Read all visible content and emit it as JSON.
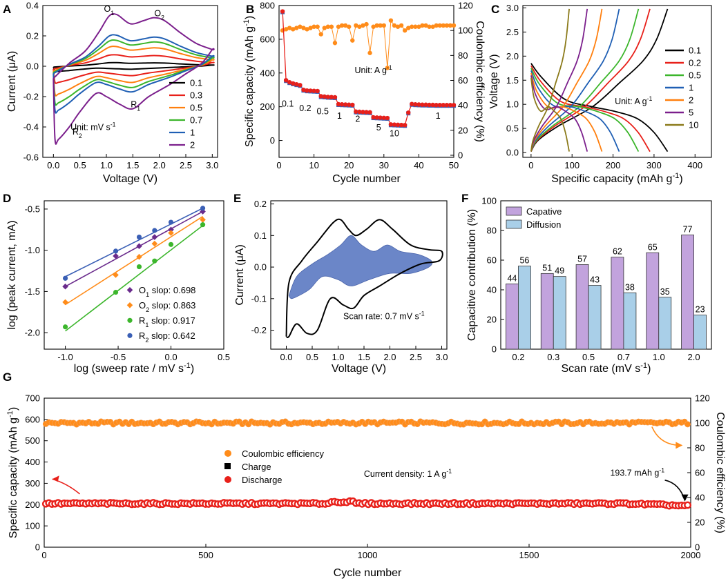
{
  "colors": {
    "cv": [
      "#000000",
      "#e8201a",
      "#ff7f0e",
      "#3cb62c",
      "#1f5fb4",
      "#7b1f8c"
    ],
    "orange": "#ff8c1a",
    "red": "#e8201a",
    "blue": "#3a5fb5",
    "purple": "#6a2b8c",
    "green": "#3cb62c",
    "capative": "#c2a3dd",
    "diffusion": "#a9cfe8",
    "fill_blue": "#6b86c8"
  },
  "chart_data": [
    {
      "panel": "A",
      "type": "line",
      "xlabel": "Voltage (V)",
      "ylabel": "Current (μA)",
      "xlim": [
        -0.2,
        3.1
      ],
      "ylim": [
        -0.6,
        0.4
      ],
      "xticks": [
        "0.0",
        "0.5",
        "1.0",
        "1.5",
        "2.0",
        "2.5",
        "3.0"
      ],
      "yticks": [
        "-0.6",
        "-0.4",
        "-0.2",
        "0.0",
        "0.2",
        "0.4"
      ],
      "legend": [
        "0.1",
        "0.3",
        "0.5",
        "0.7",
        "1",
        "2"
      ],
      "legend_position": "bottom-right",
      "unit_label": "Unit: mV s",
      "unit_sup": "-1",
      "peak_labels": [
        {
          "main": "O",
          "sub": "1",
          "x": 1.05,
          "y": 0.36
        },
        {
          "main": "O",
          "sub": "2",
          "x": 2.0,
          "y": 0.33
        },
        {
          "main": "R",
          "sub": "1",
          "x": 1.55,
          "y": -0.27
        },
        {
          "main": "R",
          "sub": "2",
          "x": 0.45,
          "y": -0.45
        }
      ],
      "scales": [
        0.07,
        0.22,
        0.38,
        0.5,
        0.6,
        1.0
      ],
      "upper_curve": [
        [
          0.0,
          -0.08
        ],
        [
          0.3,
          0.02
        ],
        [
          0.6,
          0.1
        ],
        [
          0.85,
          0.22
        ],
        [
          1.05,
          0.33
        ],
        [
          1.2,
          0.34
        ],
        [
          1.45,
          0.28
        ],
        [
          1.7,
          0.3
        ],
        [
          1.9,
          0.32
        ],
        [
          2.1,
          0.3
        ],
        [
          2.4,
          0.22
        ],
        [
          2.7,
          0.15
        ],
        [
          3.0,
          0.11
        ]
      ],
      "lower_curve": [
        [
          3.0,
          0.11
        ],
        [
          2.8,
          0.02
        ],
        [
          2.5,
          -0.05
        ],
        [
          2.2,
          -0.12
        ],
        [
          1.8,
          -0.2
        ],
        [
          1.5,
          -0.28
        ],
        [
          1.25,
          -0.25
        ],
        [
          1.0,
          -0.2
        ],
        [
          0.8,
          -0.18
        ],
        [
          0.5,
          -0.3
        ],
        [
          0.3,
          -0.4
        ],
        [
          0.1,
          -0.48
        ],
        [
          0.03,
          -0.48
        ],
        [
          0.0,
          -0.08
        ]
      ]
    },
    {
      "panel": "B",
      "type": "scatter",
      "xlabel": "Cycle number",
      "ylabel": "Specific capacity (mAh g",
      "ylabel_sup": "-1",
      "ylabel_end": ")",
      "y2label": "Coulombic efficiency (%)",
      "xlim": [
        0,
        50
      ],
      "ylim": [
        -100,
        800
      ],
      "y2lim": [
        0,
        120
      ],
      "xticks": [
        "0",
        "10",
        "20",
        "30",
        "40",
        "50"
      ],
      "yticks": [
        "0",
        "200",
        "400",
        "600",
        "800"
      ],
      "y2ticks": [
        "0",
        "20",
        "40",
        "60",
        "80",
        "100",
        "120"
      ],
      "unit_label": "Unit: A g",
      "unit_sup": "-1",
      "rate_labels": [
        {
          "text": "0.1",
          "x": 2.5,
          "y": 200
        },
        {
          "text": "0.2",
          "x": 7.5,
          "y": 175
        },
        {
          "text": "0.5",
          "x": 12.5,
          "y": 155
        },
        {
          "text": "1",
          "x": 17.3,
          "y": 130
        },
        {
          "text": "2",
          "x": 22.5,
          "y": 110
        },
        {
          "text": "5",
          "x": 28.5,
          "y": 60
        },
        {
          "text": "10",
          "x": 33,
          "y": 25
        },
        {
          "text": "1",
          "x": 45.5,
          "y": 130
        }
      ],
      "capacity": [
        765,
        357,
        345,
        338,
        333,
        328,
        300,
        296,
        295,
        294,
        293,
        262,
        260,
        258,
        257,
        256,
        215,
        214,
        213,
        212,
        211,
        171,
        170,
        169,
        168,
        167,
        137,
        136,
        135,
        134,
        133,
        95,
        94,
        93,
        92,
        91,
        165,
        216,
        214,
        213,
        212,
        212,
        211,
        211,
        210,
        210,
        210,
        210,
        210,
        210
      ],
      "efficiency": [
        100,
        101,
        102,
        101,
        102,
        103,
        102,
        101,
        102,
        103,
        103,
        97,
        102,
        103,
        103,
        90,
        103,
        104,
        104,
        103,
        92,
        104,
        103,
        104,
        105,
        82,
        103,
        104,
        104,
        104,
        70,
        108,
        104,
        103,
        104,
        100,
        102,
        103,
        103,
        103,
        104,
        104,
        103,
        103,
        104,
        104,
        104,
        104,
        104,
        104
      ]
    },
    {
      "panel": "C",
      "type": "line",
      "xlabel": "Specific capacity (mAh g",
      "xlabel_sup": "-1",
      "xlabel_end": ")",
      "ylabel": "Voltage (V)",
      "xlim": [
        -20,
        440
      ],
      "ylim": [
        -0.1,
        3.05
      ],
      "xticks": [
        "0",
        "100",
        "200",
        "300",
        "400"
      ],
      "yticks": [
        "0.0",
        "0.5",
        "1.0",
        "1.5",
        "2.0",
        "2.5",
        "3.0"
      ],
      "legend": [
        "0.1",
        "0.2",
        "0.5",
        "1",
        "2",
        "5",
        "10"
      ],
      "legend_position": "top-right",
      "unit_label": "Unit: A g",
      "unit_sup": "-1",
      "capacities": [
        333,
        290,
        262,
        215,
        173,
        137,
        93
      ]
    },
    {
      "panel": "D",
      "type": "scatter",
      "xlabel": "log (sweep rate / mV s",
      "xlabel_sup": "-1",
      "xlabel_end": ")",
      "ylabel": "log (peak current, mA)",
      "xlim": [
        -1.2,
        0.5
      ],
      "ylim": [
        -2.2,
        -0.4
      ],
      "xticks": [
        "-1.0",
        "-0.5",
        "0.0",
        "0.5"
      ],
      "yticks": [
        "-2.0",
        "-1.5",
        "-1.0",
        "-0.5"
      ],
      "x": [
        -1.0,
        -0.523,
        -0.301,
        -0.155,
        0.0,
        0.301
      ],
      "series": [
        {
          "name": "O",
          "sub": "1",
          "slope_text": " slop: 0.698",
          "values": [
            -1.44,
            -1.07,
            -0.95,
            -0.84,
            -0.75,
            -0.53
          ]
        },
        {
          "name": "O",
          "sub": "2",
          "slope_text": " slop: 0.863",
          "values": [
            -1.63,
            -1.3,
            -1.08,
            -0.92,
            -0.79,
            -0.63
          ]
        },
        {
          "name": "R",
          "sub": "1",
          "slope_text": " slop: 0.917",
          "values": [
            -1.93,
            -1.51,
            -1.2,
            -1.13,
            -0.93,
            -0.69
          ]
        },
        {
          "name": "R",
          "sub": "2",
          "slope_text": " slop: 0.642",
          "values": [
            -1.34,
            -1.01,
            -0.84,
            -0.76,
            -0.66,
            -0.49
          ]
        }
      ],
      "fits": [
        [
          -1.44,
          -0.53
        ],
        [
          -1.66,
          -0.59
        ],
        [
          -1.98,
          -0.7
        ],
        [
          -1.32,
          -0.49
        ]
      ]
    },
    {
      "panel": "E",
      "type": "area",
      "xlabel": "Voltage (V)",
      "ylabel": "Current (μA)",
      "xlim": [
        -0.3,
        3.1
      ],
      "ylim": [
        -0.26,
        0.21
      ],
      "xticks": [
        "0.0",
        "0.5",
        "1.0",
        "1.5",
        "2.0",
        "2.5",
        "3.0"
      ],
      "yticks": [
        "-0.2",
        "-0.1",
        "0.0",
        "0.1",
        "0.2"
      ],
      "annotation": "Scan rate: 0.7 mV s",
      "annotation_sup": "-1",
      "total_curve": [
        [
          0.0,
          -0.22
        ],
        [
          0.05,
          -0.05
        ],
        [
          0.3,
          0.02
        ],
        [
          0.6,
          0.08
        ],
        [
          0.9,
          0.14
        ],
        [
          1.05,
          0.15
        ],
        [
          1.2,
          0.12
        ],
        [
          1.35,
          0.1
        ],
        [
          1.55,
          0.12
        ],
        [
          1.8,
          0.15
        ],
        [
          2.05,
          0.12
        ],
        [
          2.4,
          0.07
        ],
        [
          2.75,
          0.055
        ],
        [
          3.0,
          0.05
        ],
        [
          2.95,
          0.02
        ],
        [
          2.6,
          0.01
        ],
        [
          2.2,
          -0.02
        ],
        [
          1.8,
          -0.06
        ],
        [
          1.5,
          -0.09
        ],
        [
          1.3,
          -0.13
        ],
        [
          1.1,
          -0.12
        ],
        [
          0.85,
          -0.1
        ],
        [
          0.6,
          -0.2
        ],
        [
          0.4,
          -0.21
        ],
        [
          0.2,
          -0.18
        ],
        [
          0.05,
          -0.22
        ],
        [
          0.0,
          -0.22
        ]
      ],
      "capacitive_area": [
        [
          0.05,
          -0.09
        ],
        [
          0.2,
          -0.03
        ],
        [
          0.5,
          0.01
        ],
        [
          0.8,
          0.04
        ],
        [
          1.05,
          0.07
        ],
        [
          1.25,
          0.1
        ],
        [
          1.45,
          0.07
        ],
        [
          1.7,
          0.05
        ],
        [
          1.95,
          0.07
        ],
        [
          2.2,
          0.05
        ],
        [
          2.55,
          0.04
        ],
        [
          2.8,
          0.02
        ],
        [
          2.75,
          0.0
        ],
        [
          2.4,
          -0.02
        ],
        [
          2.0,
          -0.02
        ],
        [
          1.6,
          -0.04
        ],
        [
          1.25,
          -0.06
        ],
        [
          1.0,
          -0.04
        ],
        [
          0.7,
          -0.03
        ],
        [
          0.45,
          -0.07
        ],
        [
          0.25,
          -0.09
        ],
        [
          0.1,
          -0.1
        ],
        [
          0.05,
          -0.09
        ]
      ]
    },
    {
      "panel": "F",
      "type": "bar",
      "xlabel": "Scan  rate (mV s",
      "xlabel_sup": "-1",
      "xlabel_end": ")",
      "ylabel": "Capacitive contribution (%)",
      "ylim": [
        0,
        100
      ],
      "yticks": [
        "0",
        "20",
        "40",
        "60",
        "80",
        "100"
      ],
      "categories": [
        "0.2",
        "0.3",
        "0.5",
        "0.7",
        "1.0",
        "2.0"
      ],
      "series": [
        {
          "name": "Capative",
          "values": [
            44,
            51,
            57,
            62,
            65,
            77
          ]
        },
        {
          "name": "Diffusion",
          "values": [
            56,
            49,
            43,
            38,
            35,
            23
          ]
        }
      ],
      "legend_position": "top-left"
    },
    {
      "panel": "G",
      "type": "scatter",
      "xlabel": "Cycle number",
      "ylabel": "Specific capacity (mAh g",
      "ylabel_sup": "-1",
      "ylabel_end": ")",
      "y2label": "Coulombic efficiency (%)",
      "xlim": [
        0,
        2000
      ],
      "ylim": [
        0,
        700
      ],
      "y2lim": [
        0,
        120
      ],
      "xticks": [
        "0",
        "500",
        "1000",
        "1500",
        "2000"
      ],
      "yticks": [
        "0",
        "100",
        "200",
        "300",
        "400",
        "500",
        "600",
        "700"
      ],
      "y2ticks": [
        "0",
        "20",
        "40",
        "60",
        "80",
        "100",
        "120"
      ],
      "legend": [
        "Coulombic efficiency",
        "Charge",
        "Discharge"
      ],
      "legend_position": "center-left",
      "current_density": "Current density: 1 A g",
      "current_density_sup": "-1",
      "final_capacity": "193.7 mAh g",
      "final_capacity_sup": "-1",
      "capacity_level": 205,
      "final_value": 193.7,
      "efficiency_level": 100
    }
  ],
  "panel_letters": [
    "A",
    "B",
    "C",
    "D",
    "E",
    "F",
    "G"
  ]
}
